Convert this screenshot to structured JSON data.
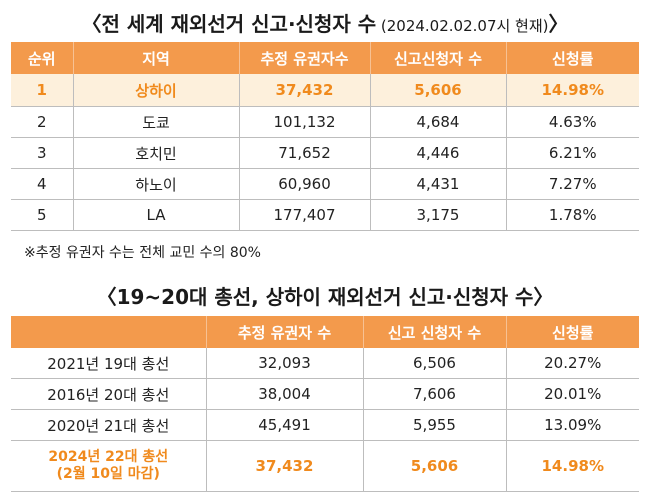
{
  "title1": {
    "main": "〈전 세계 재외선거 신고·신청자 수",
    "sub": " (2024.02.02.07시 현재)",
    "close": "〉"
  },
  "table1": {
    "headers": [
      "순위",
      "지역",
      "추정 유권자수",
      "신고신청자 수",
      "신청률"
    ],
    "rows": [
      [
        "1",
        "상하이",
        "37,432",
        "5,606",
        "14.98%"
      ],
      [
        "2",
        "도쿄",
        "101,132",
        "4,684",
        "4.63%"
      ],
      [
        "3",
        "호치민",
        "71,652",
        "4,446",
        "6.21%"
      ],
      [
        "4",
        "하노이",
        "60,960",
        "4,431",
        "7.27%"
      ],
      [
        "5",
        "LA",
        "177,407",
        "3,175",
        "1.78%"
      ]
    ]
  },
  "note": "※추정 유권자 수는 전체 교민 수의 80%",
  "title2": "〈19~20대 총선, 상하이 재외선거 신고·신청자 수〉",
  "table2": {
    "headers": [
      "",
      "추정 유권자 수",
      "신고 신청자 수",
      "신청률"
    ],
    "rows": [
      [
        "2021년 19대 총선",
        "32,093",
        "6,506",
        "20.27%"
      ],
      [
        "2016년 20대 총선",
        "38,004",
        "7,606",
        "20.01%"
      ],
      [
        "2020년 21대 총선",
        "45,491",
        "5,955",
        "13.09%"
      ]
    ],
    "last_row": {
      "label_line1": "2024년 22대 총선",
      "label_line2": "(2월 10일 마감)",
      "voters": "37,432",
      "applicants": "5,606",
      "rate": "14.98%"
    }
  },
  "colors": {
    "header": "#f39a4c",
    "highlight_bg": "#fdf0dc",
    "highlight_text": "#f08a1d"
  }
}
